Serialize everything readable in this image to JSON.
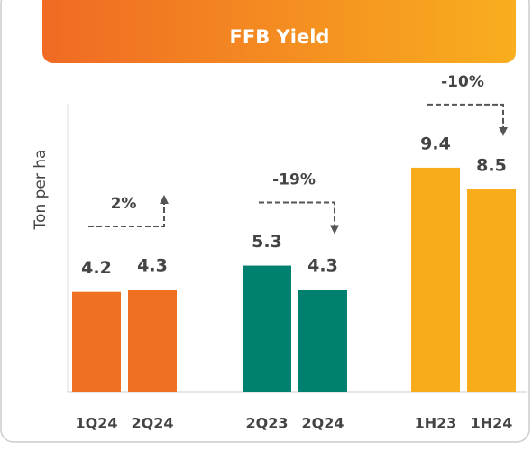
{
  "chart_data": {
    "type": "bar",
    "title": "FFB Yield",
    "y_label": "Ton per ha",
    "categories": [
      "1Q24",
      "2Q24",
      "2Q23",
      "2Q24",
      "1H23",
      "1H24"
    ],
    "values": [
      4.2,
      4.3,
      5.3,
      4.3,
      9.4,
      8.5
    ],
    "colors": [
      "#F07022",
      "#F07022",
      "#00806F",
      "#00806F",
      "#F8AC1B",
      "#F8AC1B"
    ],
    "annotations": [
      "2%",
      "-19%",
      "-10%"
    ],
    "ylim": [
      0,
      12
    ]
  }
}
